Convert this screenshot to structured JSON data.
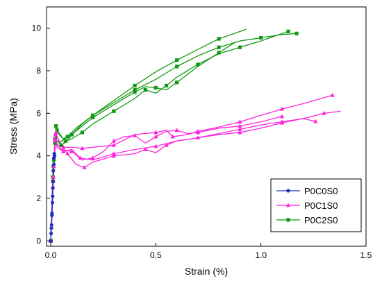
{
  "chart_data": {
    "type": "line",
    "title": "",
    "xlabel": "Strain (%)",
    "ylabel": "Stress (MPa)",
    "xlim": [
      -0.02,
      1.5
    ],
    "ylim": [
      -0.25,
      11
    ],
    "xticks": [
      0.0,
      0.5,
      1.0,
      1.5
    ],
    "xtick_labels": [
      "0.0",
      "0.5",
      "1.0",
      "1.5"
    ],
    "yticks": [
      0,
      2,
      4,
      6,
      8,
      10
    ],
    "ytick_labels": [
      "0",
      "2",
      "4",
      "6",
      "8",
      "10"
    ],
    "grid": false,
    "legend_position": "bottom-right",
    "series": [
      {
        "name": "P0C0S0",
        "color": "#1f2fbf",
        "marker": "circle",
        "curves": [
          [
            [
              0.0,
              0.0
            ],
            [
              0.002,
              0.35
            ],
            [
              0.004,
              0.75
            ],
            [
              0.006,
              1.2
            ],
            [
              0.008,
              1.8
            ],
            [
              0.01,
              2.5
            ],
            [
              0.012,
              3.3
            ],
            [
              0.015,
              3.9
            ],
            [
              0.017,
              4.1
            ]
          ],
          [
            [
              0.0,
              0.0
            ],
            [
              0.003,
              0.6
            ],
            [
              0.006,
              1.3
            ],
            [
              0.009,
              2.1
            ],
            [
              0.012,
              2.8
            ],
            [
              0.015,
              3.6
            ],
            [
              0.018,
              4.0
            ]
          ]
        ]
      },
      {
        "name": "P0C1S0",
        "color": "#ff22dd",
        "marker": "triangle",
        "curves": [
          [
            [
              0.0,
              0.0
            ],
            [
              0.01,
              2.5
            ],
            [
              0.02,
              4.8
            ],
            [
              0.03,
              4.4
            ],
            [
              0.06,
              4.2
            ],
            [
              0.1,
              4.3
            ],
            [
              0.14,
              3.9
            ],
            [
              0.2,
              3.8
            ],
            [
              0.3,
              4.1
            ],
            [
              0.4,
              4.3
            ],
            [
              0.5,
              4.45
            ],
            [
              0.6,
              4.7
            ],
            [
              0.7,
              4.85
            ],
            [
              0.8,
              5.0
            ],
            [
              0.9,
              5.1
            ],
            [
              1.0,
              5.3
            ],
            [
              1.1,
              5.55
            ],
            [
              1.2,
              5.75
            ],
            [
              1.26,
              5.62
            ]
          ],
          [
            [
              0.0,
              0.0
            ],
            [
              0.012,
              3.0
            ],
            [
              0.022,
              5.0
            ],
            [
              0.03,
              4.5
            ],
            [
              0.06,
              4.4
            ],
            [
              0.1,
              4.4
            ],
            [
              0.15,
              4.35
            ],
            [
              0.2,
              4.4
            ],
            [
              0.3,
              4.5
            ],
            [
              0.4,
              5.0
            ],
            [
              0.5,
              5.1
            ],
            [
              0.55,
              5.2
            ],
            [
              0.58,
              4.9
            ],
            [
              0.65,
              5.0
            ],
            [
              0.7,
              5.15
            ],
            [
              0.8,
              5.35
            ],
            [
              0.9,
              5.6
            ],
            [
              1.0,
              5.9
            ],
            [
              1.1,
              6.2
            ],
            [
              1.2,
              6.45
            ],
            [
              1.34,
              6.85
            ]
          ],
          [
            [
              0.0,
              0.0
            ],
            [
              0.015,
              3.5
            ],
            [
              0.025,
              5.1
            ],
            [
              0.04,
              4.6
            ],
            [
              0.08,
              4.1
            ],
            [
              0.12,
              3.6
            ],
            [
              0.16,
              3.45
            ],
            [
              0.2,
              3.7
            ],
            [
              0.3,
              4.0
            ],
            [
              0.4,
              4.1
            ],
            [
              0.45,
              4.3
            ],
            [
              0.5,
              4.15
            ],
            [
              0.55,
              4.5
            ],
            [
              0.6,
              4.7
            ],
            [
              0.7,
              4.85
            ],
            [
              0.8,
              5.05
            ],
            [
              0.9,
              5.25
            ],
            [
              1.0,
              5.45
            ],
            [
              1.1,
              5.6
            ],
            [
              1.2,
              5.75
            ],
            [
              1.3,
              6.0
            ],
            [
              1.38,
              6.1
            ]
          ],
          [
            [
              0.0,
              0.0
            ],
            [
              0.01,
              2.8
            ],
            [
              0.02,
              4.7
            ],
            [
              0.05,
              4.3
            ],
            [
              0.1,
              4.2
            ],
            [
              0.15,
              3.8
            ],
            [
              0.2,
              3.9
            ],
            [
              0.25,
              4.2
            ],
            [
              0.3,
              4.7
            ],
            [
              0.35,
              4.9
            ],
            [
              0.4,
              4.95
            ],
            [
              0.45,
              4.6
            ],
            [
              0.5,
              4.9
            ],
            [
              0.55,
              5.15
            ],
            [
              0.6,
              5.2
            ],
            [
              0.65,
              5.05
            ],
            [
              0.7,
              5.1
            ],
            [
              0.8,
              5.3
            ],
            [
              0.9,
              5.4
            ],
            [
              1.0,
              5.6
            ],
            [
              1.1,
              5.85
            ]
          ]
        ]
      },
      {
        "name": "P0C2S0",
        "color": "#119911",
        "marker": "square",
        "curves": [
          [
            [
              0.0,
              0.0
            ],
            [
              0.01,
              3.0
            ],
            [
              0.02,
              4.6
            ],
            [
              0.03,
              4.9
            ],
            [
              0.05,
              4.5
            ],
            [
              0.08,
              4.7
            ],
            [
              0.1,
              5.0
            ],
            [
              0.15,
              5.5
            ],
            [
              0.2,
              5.9
            ],
            [
              0.3,
              6.5
            ],
            [
              0.4,
              7.1
            ],
            [
              0.5,
              7.6
            ],
            [
              0.6,
              8.2
            ],
            [
              0.7,
              8.7
            ],
            [
              0.8,
              9.1
            ],
            [
              0.9,
              9.4
            ],
            [
              1.0,
              9.55
            ],
            [
              1.1,
              9.7
            ],
            [
              1.17,
              9.75
            ]
          ],
          [
            [
              0.0,
              0.0
            ],
            [
              0.012,
              3.5
            ],
            [
              0.025,
              5.4
            ],
            [
              0.04,
              5.0
            ],
            [
              0.07,
              4.7
            ],
            [
              0.1,
              4.8
            ],
            [
              0.15,
              5.1
            ],
            [
              0.2,
              5.5
            ],
            [
              0.3,
              6.1
            ],
            [
              0.4,
              6.7
            ],
            [
              0.45,
              7.1
            ],
            [
              0.5,
              6.95
            ],
            [
              0.55,
              7.3
            ],
            [
              0.6,
              7.7
            ],
            [
              0.7,
              8.3
            ],
            [
              0.8,
              8.8
            ],
            [
              0.9,
              9.1
            ],
            [
              1.0,
              9.4
            ],
            [
              1.13,
              9.85
            ]
          ],
          [
            [
              0.0,
              0.0
            ],
            [
              0.01,
              2.8
            ],
            [
              0.02,
              4.8
            ],
            [
              0.04,
              4.6
            ],
            [
              0.08,
              4.9
            ],
            [
              0.12,
              5.3
            ],
            [
              0.2,
              5.9
            ],
            [
              0.3,
              6.6
            ],
            [
              0.4,
              7.3
            ],
            [
              0.5,
              7.95
            ],
            [
              0.6,
              8.5
            ],
            [
              0.7,
              9.0
            ],
            [
              0.8,
              9.5
            ],
            [
              0.93,
              9.95
            ]
          ],
          [
            [
              0.0,
              0.0
            ],
            [
              0.015,
              3.8
            ],
            [
              0.03,
              5.2
            ],
            [
              0.06,
              4.8
            ],
            [
              0.1,
              5.0
            ],
            [
              0.15,
              5.4
            ],
            [
              0.2,
              5.8
            ],
            [
              0.3,
              6.4
            ],
            [
              0.4,
              7.0
            ],
            [
              0.45,
              7.25
            ],
            [
              0.5,
              7.2
            ],
            [
              0.55,
              7.1
            ],
            [
              0.6,
              7.45
            ],
            [
              0.7,
              8.2
            ],
            [
              0.8,
              8.85
            ],
            [
              0.88,
              9.35
            ]
          ]
        ]
      }
    ]
  }
}
